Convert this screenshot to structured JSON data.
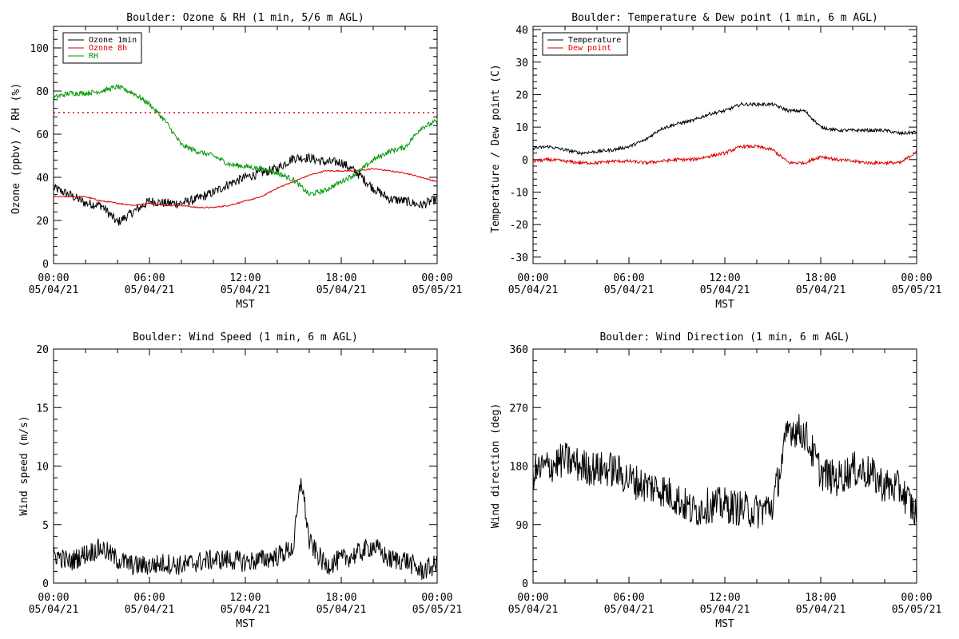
{
  "chart_data": [
    {
      "type": "line",
      "title": "Boulder: Ozone & RH (1 min, 5/6 m AGL)",
      "xlabel": "MST",
      "ylabel": "Ozone (ppbv) / RH (%)",
      "ylim": [
        0,
        110
      ],
      "yticks": [
        "0",
        "20",
        "40",
        "60",
        "80",
        "100"
      ],
      "xticks": [
        [
          "00:00",
          "05/04/21"
        ],
        [
          "06:00",
          "05/04/21"
        ],
        [
          "12:00",
          "05/04/21"
        ],
        [
          "18:00",
          "05/04/21"
        ],
        [
          "00:00",
          "05/05/21"
        ]
      ],
      "x_hours": [
        0,
        1,
        2,
        3,
        4,
        5,
        6,
        7,
        8,
        9,
        10,
        11,
        12,
        13,
        14,
        15,
        16,
        17,
        18,
        19,
        20,
        21,
        22,
        23,
        24
      ],
      "legend": "top-left",
      "reference_line": {
        "y": 70,
        "color": "#dd0000",
        "style": "dotted"
      },
      "series": [
        {
          "name": "Ozone 1min",
          "color": "#000000",
          "values": [
            35,
            32,
            28,
            27,
            19,
            24,
            29,
            28,
            28,
            30,
            33,
            37,
            40,
            42,
            44,
            49,
            49,
            47,
            47,
            42,
            35,
            30,
            29,
            27,
            30
          ]
        },
        {
          "name": "Ozone 8h",
          "color": "#dd0000",
          "values": [
            31,
            31,
            31,
            29,
            28,
            27,
            28,
            27,
            27,
            26,
            26,
            27,
            29,
            31,
            35,
            38,
            41,
            43,
            43,
            43,
            44,
            43,
            42,
            40,
            38
          ]
        },
        {
          "name": "RH",
          "color": "#009900",
          "values": [
            77,
            79,
            79,
            80,
            82,
            79,
            74,
            66,
            55,
            52,
            50,
            46,
            45,
            44,
            42,
            39,
            32,
            34,
            38,
            42,
            48,
            52,
            54,
            63,
            66
          ]
        }
      ]
    },
    {
      "type": "line",
      "title": "Boulder: Temperature & Dew point (1 min, 6 m AGL)",
      "xlabel": "MST",
      "ylabel": "Temperature / Dew point (C)",
      "ylim": [
        -32,
        41
      ],
      "yticks": [
        "-30",
        "-20",
        "-10",
        "0",
        "10",
        "20",
        "30",
        "40"
      ],
      "xticks": [
        [
          "00:00",
          "05/04/21"
        ],
        [
          "06:00",
          "05/04/21"
        ],
        [
          "12:00",
          "05/04/21"
        ],
        [
          "18:00",
          "05/04/21"
        ],
        [
          "00:00",
          "05/05/21"
        ]
      ],
      "x_hours": [
        0,
        1,
        2,
        3,
        4,
        5,
        6,
        7,
        8,
        9,
        10,
        11,
        12,
        13,
        14,
        15,
        16,
        17,
        18,
        19,
        20,
        21,
        22,
        23,
        24
      ],
      "legend": "top-left",
      "series": [
        {
          "name": "Temperature",
          "color": "#000000",
          "values": [
            3.5,
            4,
            3,
            2,
            2.5,
            3,
            4,
            6,
            9.5,
            11,
            12,
            14,
            15,
            17,
            17,
            17,
            15,
            15,
            10,
            9,
            9,
            9,
            9,
            8,
            8.5
          ]
        },
        {
          "name": "Dew point",
          "color": "#dd0000",
          "values": [
            -0.5,
            0,
            -0.5,
            -1,
            -1,
            -0.5,
            -0.5,
            -1,
            -0.5,
            0,
            0,
            1,
            2,
            4,
            4,
            3,
            -1,
            -1,
            1,
            0,
            -0.5,
            -1,
            -1,
            -1,
            2.5
          ]
        }
      ]
    },
    {
      "type": "line",
      "title": "Boulder: Wind Speed (1 min, 6 m AGL)",
      "xlabel": "MST",
      "ylabel": "Wind speed (m/s)",
      "ylim": [
        0,
        20
      ],
      "yticks": [
        "0",
        "5",
        "10",
        "15",
        "20"
      ],
      "xticks": [
        [
          "00:00",
          "05/04/21"
        ],
        [
          "06:00",
          "05/04/21"
        ],
        [
          "12:00",
          "05/04/21"
        ],
        [
          "18:00",
          "05/04/21"
        ],
        [
          "00:00",
          "05/05/21"
        ]
      ],
      "x_hours": [
        0,
        1,
        2,
        3,
        4,
        5,
        6,
        7,
        8,
        9,
        10,
        11,
        12,
        13,
        14,
        15,
        15.5,
        16,
        17,
        18,
        19,
        20,
        21,
        22,
        23,
        24
      ],
      "series": [
        {
          "name": "",
          "color": "#000000",
          "values": [
            2.5,
            1.8,
            2.5,
            3,
            2,
            1.5,
            1.5,
            1.7,
            1.5,
            1.8,
            2,
            2,
            1.8,
            2,
            2.3,
            3,
            9,
            3.5,
            1.5,
            2,
            2.5,
            3.2,
            2,
            2,
            1,
            1.6
          ]
        }
      ]
    },
    {
      "type": "line",
      "title": "Boulder: Wind Direction (1 min, 6 m AGL)",
      "xlabel": "MST",
      "ylabel": "Wind direction (deg)",
      "ylim": [
        0,
        360
      ],
      "yticks": [
        "0",
        "90",
        "180",
        "270",
        "360"
      ],
      "xticks": [
        [
          "00:00",
          "05/04/21"
        ],
        [
          "06:00",
          "05/04/21"
        ],
        [
          "12:00",
          "05/04/21"
        ],
        [
          "18:00",
          "05/04/21"
        ],
        [
          "00:00",
          "05/05/21"
        ]
      ],
      "x_hours": [
        0,
        1,
        2,
        3,
        4,
        5,
        6,
        7,
        8,
        9,
        10,
        11,
        12,
        13,
        14,
        15,
        16,
        17,
        18,
        19,
        20,
        21,
        22,
        23,
        24
      ],
      "series": [
        {
          "name": "",
          "color": "#000000",
          "values": [
            170,
            180,
            190,
            180,
            175,
            175,
            160,
            150,
            145,
            130,
            110,
            120,
            120,
            115,
            110,
            120,
            240,
            230,
            170,
            160,
            175,
            170,
            150,
            145,
            105
          ]
        }
      ]
    }
  ]
}
